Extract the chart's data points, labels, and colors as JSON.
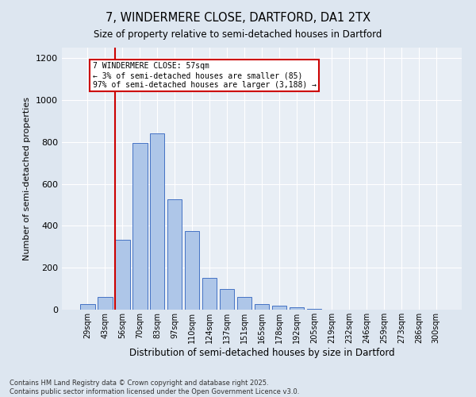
{
  "title": "7, WINDERMERE CLOSE, DARTFORD, DA1 2TX",
  "subtitle": "Size of property relative to semi-detached houses in Dartford",
  "xlabel": "Distribution of semi-detached houses by size in Dartford",
  "ylabel": "Number of semi-detached properties",
  "categories": [
    "29sqm",
    "43sqm",
    "56sqm",
    "70sqm",
    "83sqm",
    "97sqm",
    "110sqm",
    "124sqm",
    "137sqm",
    "151sqm",
    "165sqm",
    "178sqm",
    "192sqm",
    "205sqm",
    "219sqm",
    "232sqm",
    "246sqm",
    "259sqm",
    "273sqm",
    "286sqm",
    "300sqm"
  ],
  "values": [
    28,
    60,
    335,
    795,
    840,
    525,
    375,
    150,
    100,
    60,
    25,
    20,
    12,
    3,
    0,
    0,
    0,
    0,
    0,
    0,
    0
  ],
  "bar_color": "#aec6e8",
  "bar_edge_color": "#4472c4",
  "property_line_x": 2,
  "annotation_title": "7 WINDERMERE CLOSE: 57sqm",
  "annotation_line1": "← 3% of semi-detached houses are smaller (85)",
  "annotation_line2": "97% of semi-detached houses are larger (3,188) →",
  "vline_color": "#cc0000",
  "annotation_box_color": "#cc0000",
  "ylim": [
    0,
    1250
  ],
  "yticks": [
    0,
    200,
    400,
    600,
    800,
    1000,
    1200
  ],
  "footer1": "Contains HM Land Registry data © Crown copyright and database right 2025.",
  "footer2": "Contains public sector information licensed under the Open Government Licence v3.0.",
  "bg_color": "#dde6f0",
  "plot_bg_color": "#e8eef5"
}
